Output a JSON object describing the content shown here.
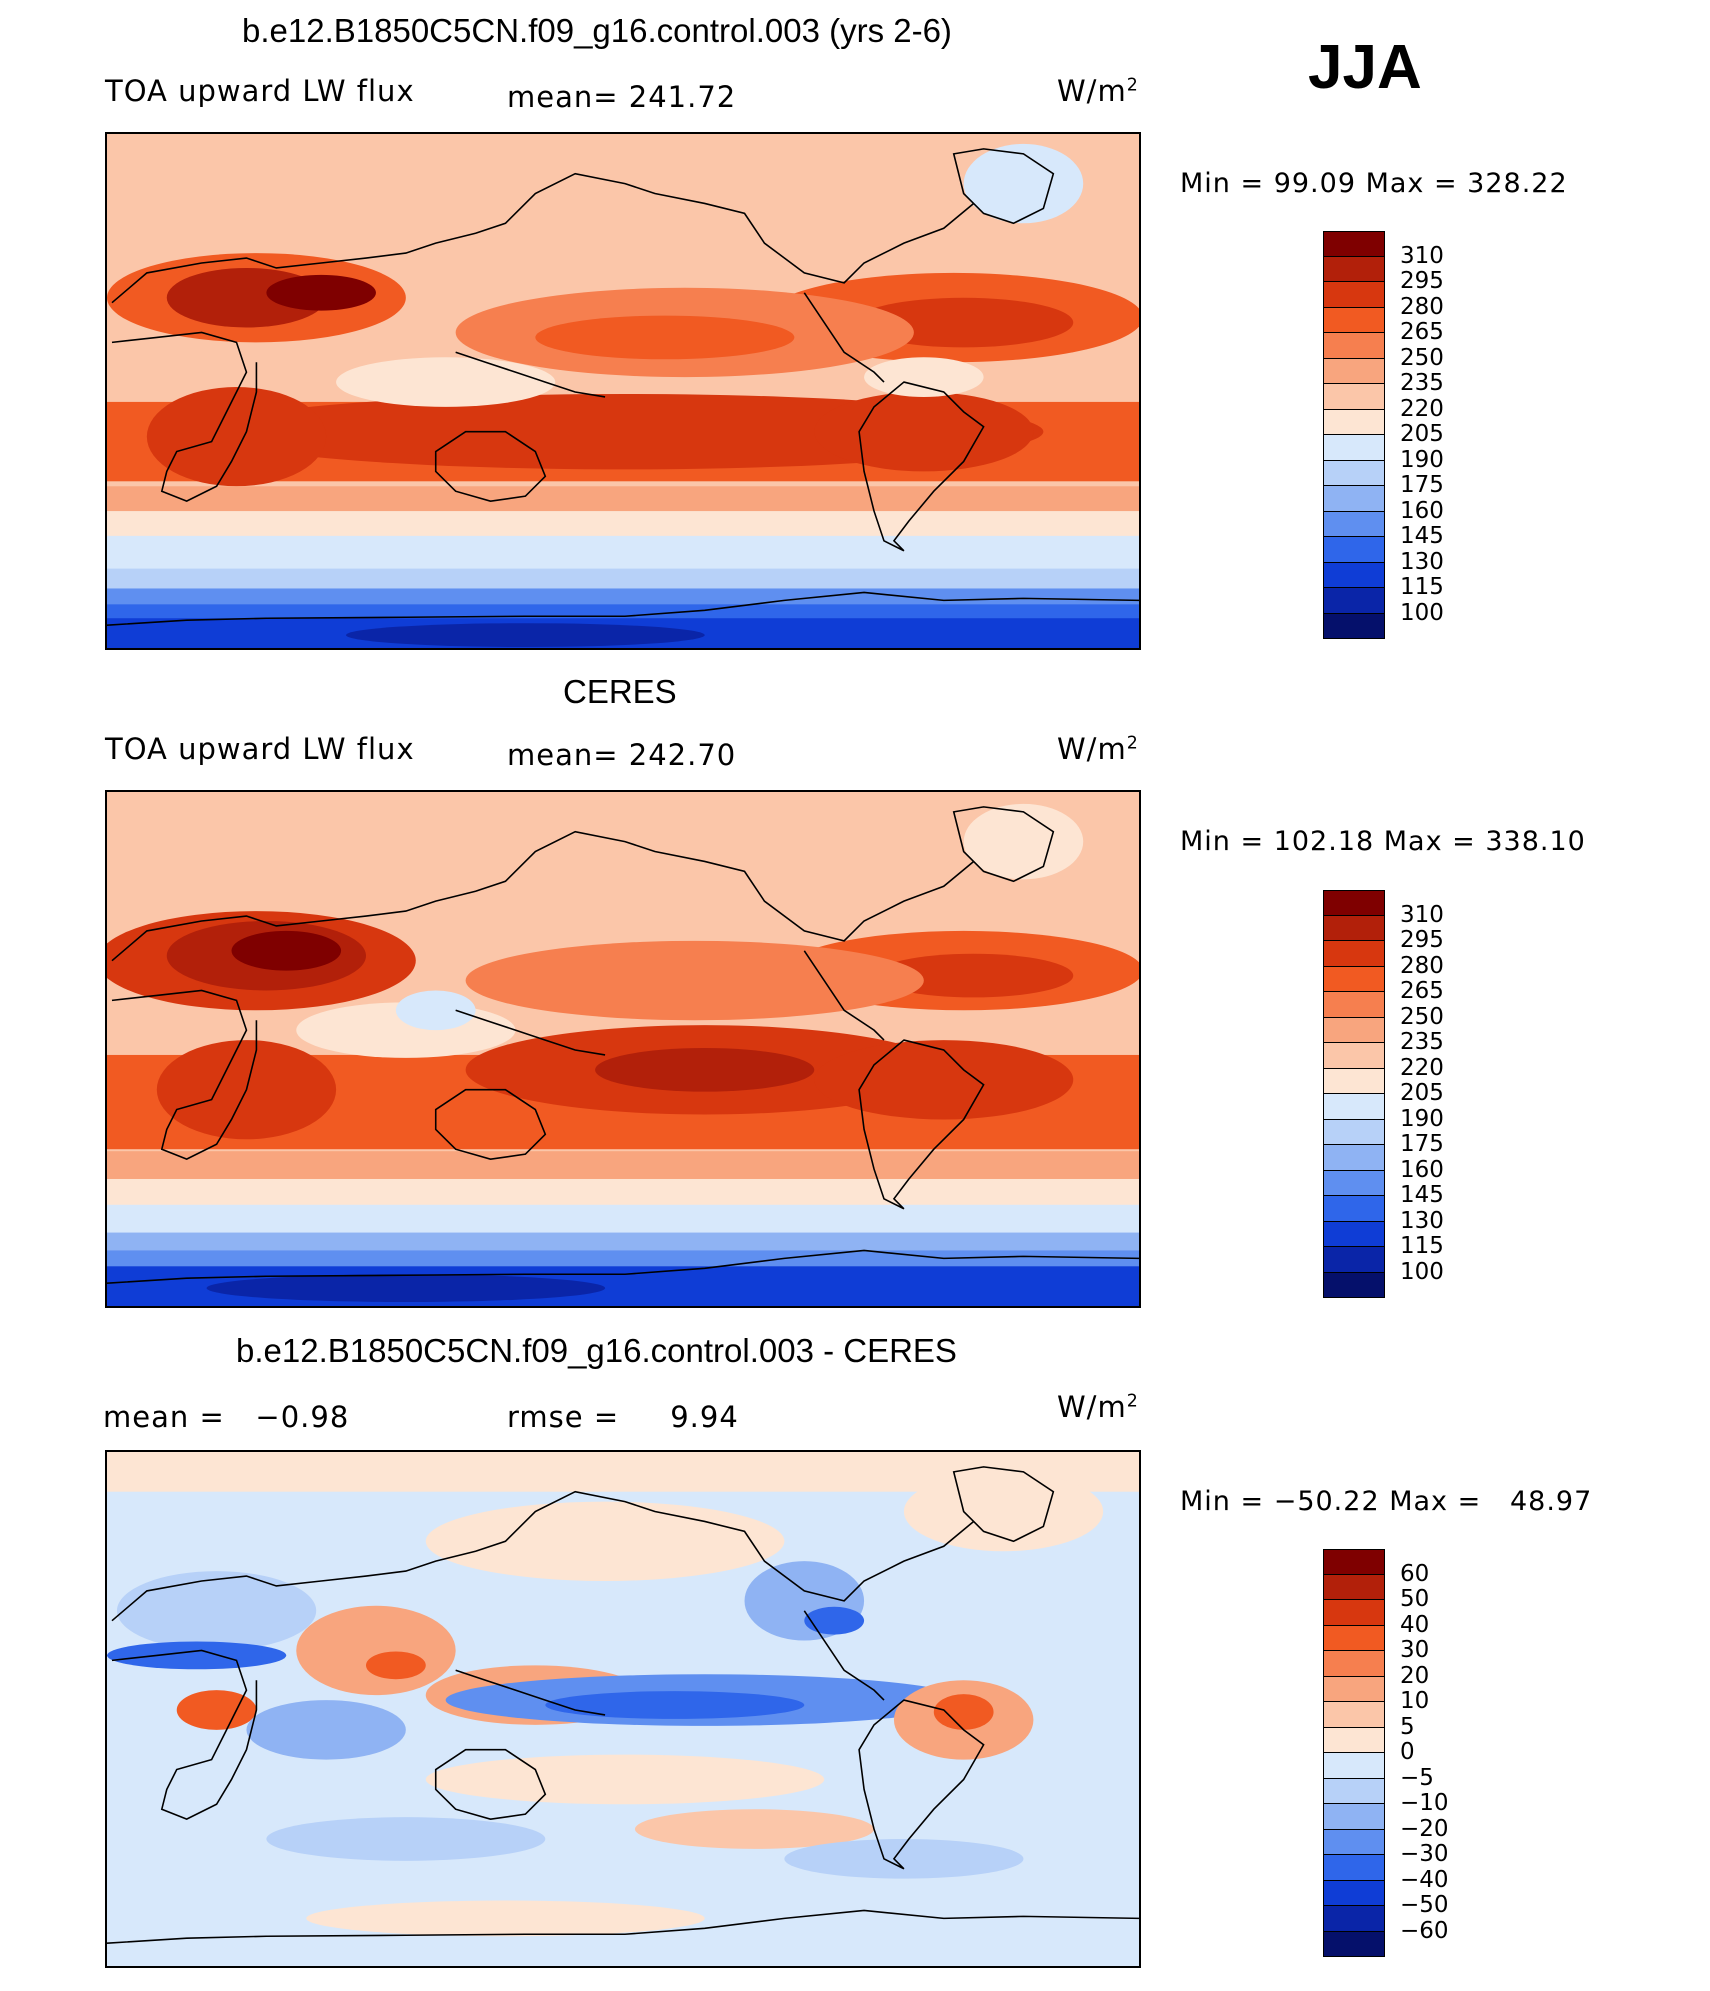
{
  "season": "JJA",
  "panels": [
    {
      "id": "model",
      "title": "b.e12.B1850C5CN.f09_g16.control.003 (yrs 2-6)",
      "left_label": "TOA upward LW flux",
      "center_label": "mean= 241.72",
      "units": "W/m",
      "units_sup": "2",
      "min_max": "Min = 99.09 Max = 328.22",
      "colorbar_labels": [
        "310",
        "295",
        "280",
        "265",
        "250",
        "235",
        "220",
        "205",
        "190",
        "175",
        "160",
        "145",
        "130",
        "115",
        "100"
      ],
      "colorbar_colors": [
        "#7f0000",
        "#b2200a",
        "#d7370f",
        "#f15a22",
        "#f67f4f",
        "#f8a57e",
        "#fbc6a9",
        "#fde5d3",
        "#d7e8fb",
        "#b7d1f8",
        "#8fb3f3",
        "#5f8ff0",
        "#2f66ea",
        "#0f3dd6",
        "#0a25a8",
        "#05106b"
      ]
    },
    {
      "id": "obs",
      "title": "CERES",
      "left_label": "TOA upward LW flux",
      "center_label": "mean= 242.70",
      "units": "W/m",
      "units_sup": "2",
      "min_max": "Min = 102.18 Max = 338.10",
      "colorbar_labels": [
        "310",
        "295",
        "280",
        "265",
        "250",
        "235",
        "220",
        "205",
        "190",
        "175",
        "160",
        "145",
        "130",
        "115",
        "100"
      ],
      "colorbar_colors": [
        "#7f0000",
        "#b2200a",
        "#d7370f",
        "#f15a22",
        "#f67f4f",
        "#f8a57e",
        "#fbc6a9",
        "#fde5d3",
        "#d7e8fb",
        "#b7d1f8",
        "#8fb3f3",
        "#5f8ff0",
        "#2f66ea",
        "#0f3dd6",
        "#0a25a8",
        "#05106b"
      ]
    },
    {
      "id": "diff",
      "title": "b.e12.B1850C5CN.f09_g16.control.003 - CERES",
      "left_label": "mean =   −0.98",
      "center_label": "rmse =     9.94",
      "units": "W/m",
      "units_sup": "2",
      "min_max": "Min = −50.22 Max =   48.97",
      "colorbar_labels": [
        "60",
        "50",
        "40",
        "30",
        "20",
        "10",
        "5",
        "0",
        "−5",
        "−10",
        "−20",
        "−30",
        "−40",
        "−50",
        "−60"
      ],
      "colorbar_colors": [
        "#7f0000",
        "#b2200a",
        "#d7370f",
        "#f15a22",
        "#f67f4f",
        "#f8a57e",
        "#fbc6a9",
        "#fde5d3",
        "#d7e8fb",
        "#b7d1f8",
        "#8fb3f3",
        "#5f8ff0",
        "#2f66ea",
        "#0f3dd6",
        "#0a25a8",
        "#05106b"
      ]
    }
  ]
}
